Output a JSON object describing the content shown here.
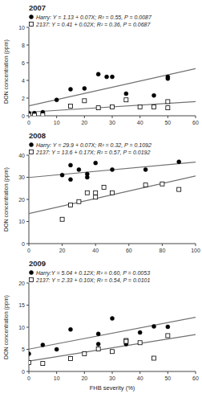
{
  "chart_data": [
    {
      "type": "scatter",
      "title": "2007",
      "ylabel": "DON concentration (ppm)",
      "xlim": [
        0,
        60
      ],
      "ylim": [
        0,
        10
      ],
      "xticks": [
        0,
        10,
        20,
        30,
        40,
        50,
        60
      ],
      "yticks": [
        0,
        2,
        4,
        6,
        8,
        10
      ],
      "grid": false,
      "legend": "top",
      "series": [
        {
          "name": "Harry: Y = 1.13 + 0.07X; R² = 0.55, P = 0.0087",
          "marker": "circle",
          "color": "black",
          "x": [
            0,
            2,
            5,
            10,
            15,
            20,
            25,
            28,
            30,
            35,
            45,
            50,
            50
          ],
          "values": [
            0.3,
            0.3,
            0.4,
            1.8,
            3.0,
            3.1,
            4.7,
            4.4,
            4.4,
            2.5,
            2.3,
            4.2,
            4.4
          ]
        },
        {
          "name": "2137: Y = 0.41 + 0.02X; R² = 0.36, P = 0.0687",
          "marker": "square",
          "color": "white",
          "x": [
            0,
            2,
            5,
            15,
            20,
            25,
            30,
            35,
            40,
            45,
            50,
            50
          ],
          "values": [
            0.05,
            0.05,
            0.1,
            1.1,
            1.7,
            0.9,
            1.0,
            1.8,
            1.0,
            1.0,
            0.9,
            1.6
          ]
        },
        {
          "type": "line",
          "color": "#707070",
          "x": [
            0,
            60
          ],
          "values": [
            1.13,
            5.33
          ]
        },
        {
          "type": "line",
          "color": "#707070",
          "x": [
            0,
            60
          ],
          "values": [
            0.41,
            1.61
          ]
        }
      ]
    },
    {
      "type": "scatter",
      "title": "2008",
      "ylabel": "DON concentration (ppm)",
      "xlim": [
        0,
        100
      ],
      "ylim": [
        0,
        40
      ],
      "xticks": [
        0,
        20,
        40,
        60,
        80,
        100
      ],
      "yticks": [
        0,
        10,
        20,
        30,
        40
      ],
      "grid": false,
      "legend": "top",
      "series": [
        {
          "name": "Harry: Y = 29.9 + 0.07X; R² = 0.32, P = 0.1092",
          "marker": "circle",
          "color": "black",
          "x": [
            20,
            25,
            25,
            30,
            35,
            35,
            40,
            50,
            70,
            90
          ],
          "values": [
            31.0,
            35.5,
            29.0,
            33.5,
            31.5,
            30.0,
            36.5,
            33.5,
            33.5,
            37.0
          ]
        },
        {
          "name": "2137: Y = 13.6 + 0.17X; R² = 0.57, P = 0.0192",
          "marker": "square",
          "color": "white",
          "x": [
            20,
            25,
            30,
            35,
            40,
            40,
            45,
            50,
            70,
            80,
            90
          ],
          "values": [
            11.0,
            17.5,
            19.0,
            23.0,
            21.0,
            23.0,
            25.5,
            23.0,
            26.5,
            27.0,
            24.5
          ]
        },
        {
          "type": "line",
          "color": "#707070",
          "x": [
            0,
            100
          ],
          "values": [
            29.9,
            36.9
          ]
        },
        {
          "type": "line",
          "color": "#707070",
          "x": [
            0,
            100
          ],
          "values": [
            13.6,
            30.6
          ]
        }
      ]
    },
    {
      "type": "scatter",
      "title": "2009",
      "ylabel": "DON concentration (ppm)",
      "xlabel": "FHB severity (%)",
      "xlim": [
        0,
        60
      ],
      "ylim": [
        0,
        20
      ],
      "xticks": [
        0,
        10,
        20,
        30,
        40,
        50,
        60
      ],
      "yticks": [
        0,
        5,
        10,
        15,
        20
      ],
      "grid": false,
      "legend": "top",
      "series": [
        {
          "name": "Harry:Y = 5.04 + 0.12X; R² = 0.60, P = 0.0053",
          "marker": "circle",
          "color": "black",
          "x": [
            0,
            5,
            10,
            15,
            25,
            25,
            30,
            35,
            40,
            45,
            50
          ],
          "values": [
            4.0,
            6.0,
            5.0,
            9.5,
            8.5,
            6.2,
            12.0,
            6.2,
            8.8,
            10.2,
            10.1
          ]
        },
        {
          "name": "2137: Y = 2.33 + 0.10X; R² = 0.54, P = 0.0101",
          "marker": "square",
          "color": "white",
          "x": [
            0,
            5,
            15,
            20,
            25,
            30,
            35,
            35,
            40,
            45,
            50
          ],
          "values": [
            2.0,
            1.8,
            2.9,
            4.0,
            5.1,
            4.5,
            7.0,
            6.8,
            6.5,
            3.0,
            8.1
          ]
        },
        {
          "type": "line",
          "color": "#707070",
          "x": [
            0,
            60
          ],
          "values": [
            5.04,
            12.24
          ]
        },
        {
          "type": "line",
          "color": "#707070",
          "x": [
            0,
            60
          ],
          "values": [
            2.33,
            8.33
          ]
        }
      ]
    }
  ]
}
